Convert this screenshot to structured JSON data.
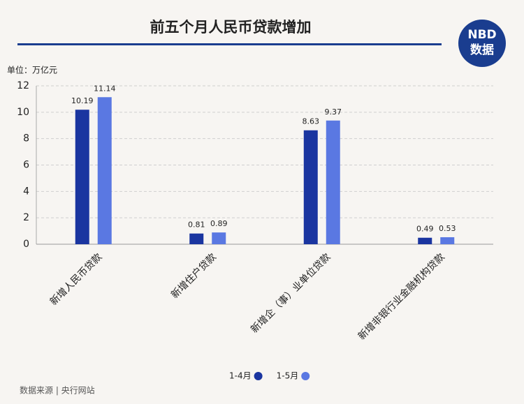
{
  "chart_data": {
    "type": "bar",
    "title": "前五个月人民币贷款增加",
    "y_unit_label": "单位：万亿元",
    "categories": [
      "新增人民币贷款",
      "新增住户贷款",
      "新增企（事）业单位贷款",
      "新增非银行业金融机构贷款"
    ],
    "series": [
      {
        "name": "1-4月",
        "color": "#1a35a0",
        "values": [
          10.19,
          0.81,
          8.63,
          0.49
        ]
      },
      {
        "name": "1-5月",
        "color": "#5a78e2",
        "values": [
          11.14,
          0.89,
          9.37,
          0.53
        ]
      }
    ],
    "ylim": [
      0,
      12
    ],
    "yticks": [
      0,
      2,
      4,
      6,
      8,
      10,
      12
    ],
    "grid": true,
    "legend": "bottom"
  },
  "logo": {
    "line1": "NBD",
    "line2": "数据"
  },
  "source": "数据来源 | 央行网站"
}
